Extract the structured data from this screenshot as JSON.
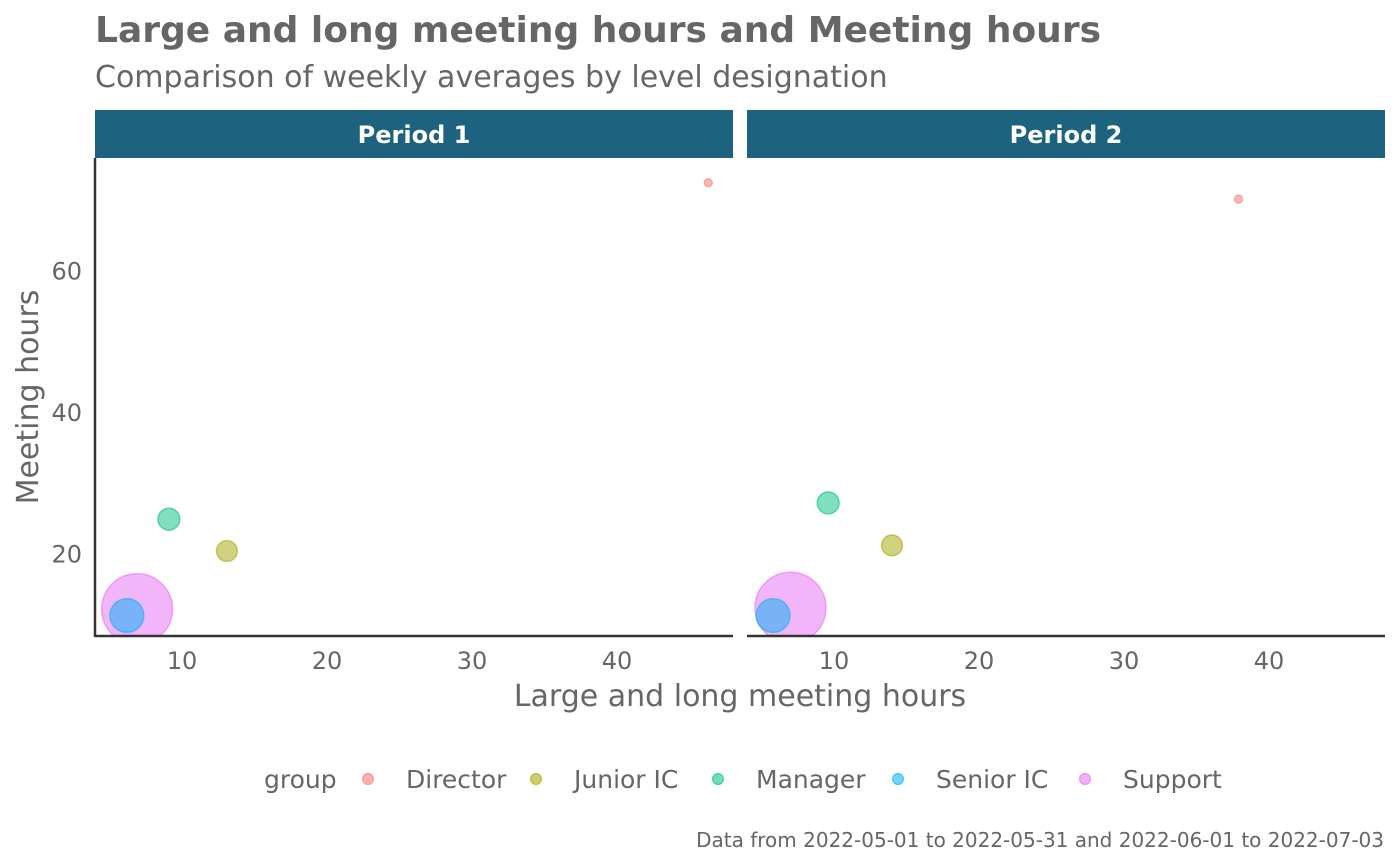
{
  "chart_data": {
    "type": "scatter",
    "title": "Large and long meeting hours and Meeting hours",
    "subtitle": "Comparison of weekly averages by  level designation",
    "xlabel": "Large and long meeting hours",
    "ylabel": "Meeting hours",
    "xlim": [
      4,
      48
    ],
    "ylim": [
      8.5,
      76
    ],
    "x_ticks": [
      10,
      20,
      30,
      40
    ],
    "y_ticks": [
      20,
      40,
      60
    ],
    "grid": false,
    "legend_title": "group",
    "legend_position": "bottom",
    "caption": "Data from 2022-05-01 to 2022-05-31 and 2022-06-01 to 2022-07-03",
    "panels": [
      {
        "label": "Period 1",
        "points": [
          {
            "group": "Director",
            "x": 46.3,
            "y": 72.5,
            "size": 1
          },
          {
            "group": "Junior IC",
            "x": 13.1,
            "y": 20.5,
            "size": 8
          },
          {
            "group": "Manager",
            "x": 9.1,
            "y": 25.0,
            "size": 9
          },
          {
            "group": "Support",
            "x": 6.9,
            "y": 12.3,
            "size": 100
          },
          {
            "group": "Senior IC",
            "x": 6.2,
            "y": 11.4,
            "size": 22
          }
        ]
      },
      {
        "label": "Period 2",
        "points": [
          {
            "group": "Director",
            "x": 37.9,
            "y": 70.2,
            "size": 1
          },
          {
            "group": "Junior IC",
            "x": 14.0,
            "y": 21.3,
            "size": 8
          },
          {
            "group": "Manager",
            "x": 9.6,
            "y": 27.3,
            "size": 9
          },
          {
            "group": "Support",
            "x": 7.0,
            "y": 12.5,
            "size": 100
          },
          {
            "group": "Senior IC",
            "x": 5.8,
            "y": 11.4,
            "size": 22
          }
        ]
      }
    ],
    "groups": [
      {
        "name": "Director",
        "color": "#F8766D"
      },
      {
        "name": "Junior IC",
        "color": "#A3A500"
      },
      {
        "name": "Manager",
        "color": "#00BF7D"
      },
      {
        "name": "Senior IC",
        "color": "#00B0F6"
      },
      {
        "name": "Support",
        "color": "#E76BF3"
      }
    ],
    "strip_color": "#1D627E"
  }
}
